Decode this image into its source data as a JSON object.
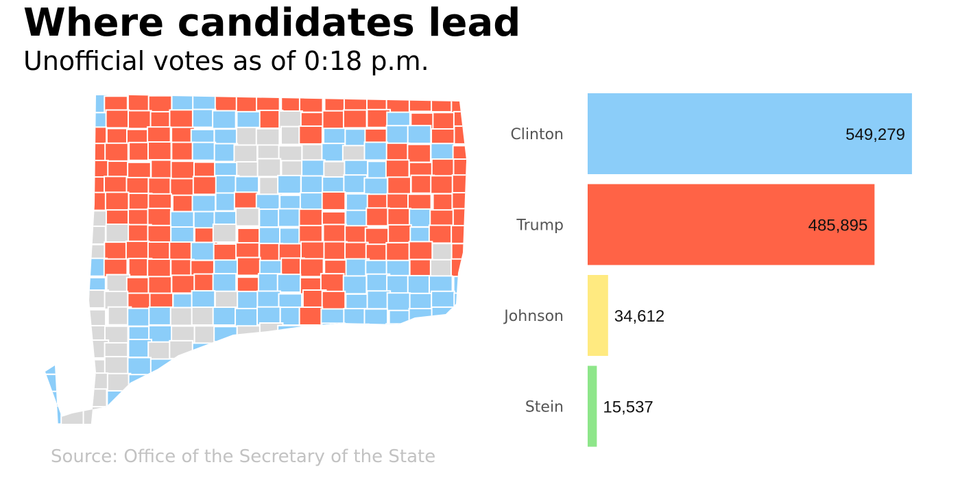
{
  "colors": {
    "clinton": "#8bcdf9",
    "trump": "#ff6346",
    "none": "#d9d9d9",
    "johnson": "#ffea80",
    "stein": "#8ee68a"
  },
  "chart_data": [
    {
      "type": "map",
      "title": "Where candidates lead",
      "subtitle": "Unofficial votes as of 0:18 p.m.",
      "source": "Source: Office of the Secretary of the State",
      "legend_colors": {
        "Clinton": "#8bcdf9",
        "Trump": "#ff6346",
        "No result": "#d9d9d9"
      }
    },
    {
      "type": "bar",
      "orientation": "horizontal",
      "categories": [
        "Clinton",
        "Trump",
        "Johnson",
        "Stein"
      ],
      "values": [
        549279,
        485895,
        34612,
        15537
      ],
      "value_labels": [
        "549,279",
        "485,895",
        "34,612",
        "15,537"
      ],
      "colors": [
        "#8bcdf9",
        "#ff6346",
        "#ffea80",
        "#8ee68a"
      ],
      "xlim": [
        0,
        590000
      ]
    }
  ]
}
